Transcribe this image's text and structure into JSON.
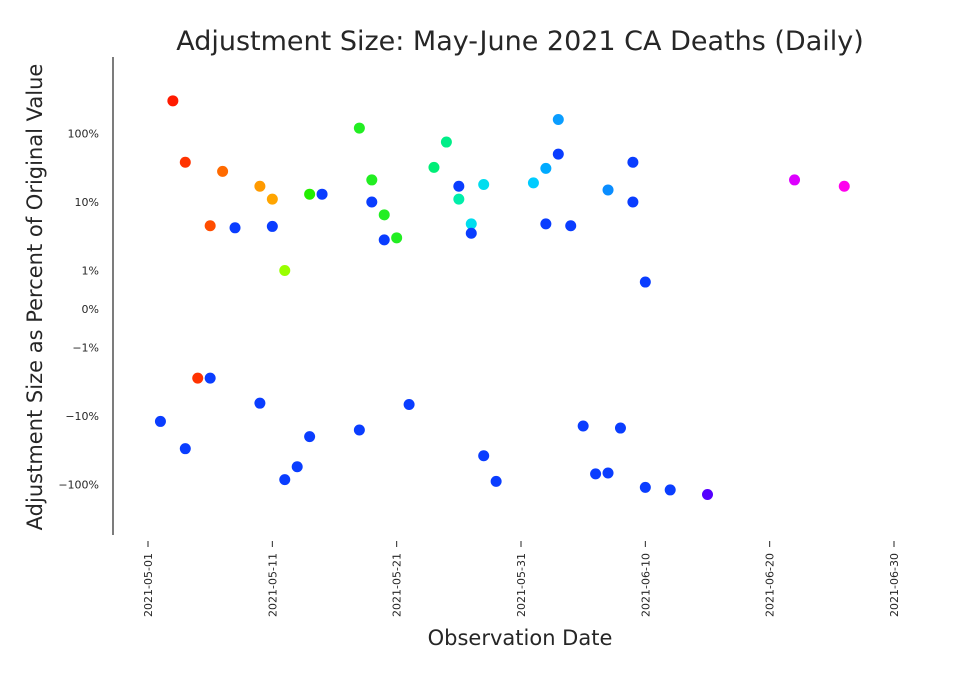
{
  "chart_data": {
    "type": "scatter",
    "title": "Adjustment Size: May-June 2021 CA Deaths (Daily)",
    "xlabel": "Observation Date",
    "ylabel": "Adjustment Size as Percent of Original Value",
    "x_ticks": [
      "2021-05-01",
      "2021-05-11",
      "2021-05-21",
      "2021-05-31",
      "2021-06-10",
      "2021-06-20",
      "2021-06-30"
    ],
    "y_ticks": [
      {
        "label": "100%",
        "value": 100
      },
      {
        "label": "10%",
        "value": 10
      },
      {
        "label": "1%",
        "value": 1
      },
      {
        "label": "0%",
        "value": 0
      },
      {
        "label": "−1%",
        "value": -1
      },
      {
        "label": "−10%",
        "value": -10
      },
      {
        "label": "−100%",
        "value": -100
      }
    ],
    "y_scale": "symlog",
    "xlim": [
      "2021-05-01",
      "2021-06-30"
    ],
    "grid": false,
    "baseline": {
      "y": 0,
      "color_scale": "rainbow"
    },
    "points": [
      {
        "x": "2021-05-03",
        "y": 300,
        "color": "#ff1a00"
      },
      {
        "x": "2021-05-04",
        "y": 38,
        "color": "#ff3300"
      },
      {
        "x": "2021-05-07",
        "y": 28,
        "color": "#ff6a00"
      },
      {
        "x": "2021-05-06",
        "y": 4.5,
        "color": "#ff4d00"
      },
      {
        "x": "2021-05-08",
        "y": 4.2,
        "color": "#0a3dff"
      },
      {
        "x": "2021-05-10",
        "y": 17,
        "color": "#ff9a00"
      },
      {
        "x": "2021-05-11",
        "y": 11,
        "color": "#ffa500"
      },
      {
        "x": "2021-05-11",
        "y": 4.4,
        "color": "#0a3dff"
      },
      {
        "x": "2021-05-12",
        "y": 1,
        "color": "#99ff00"
      },
      {
        "x": "2021-05-14",
        "y": 13,
        "color": "#22ee00"
      },
      {
        "x": "2021-05-15",
        "y": 13,
        "color": "#0a3dff"
      },
      {
        "x": "2021-05-18",
        "y": 120,
        "color": "#22ee22"
      },
      {
        "x": "2021-05-19",
        "y": 21,
        "color": "#22ee22"
      },
      {
        "x": "2021-05-19",
        "y": 10,
        "color": "#0a3dff"
      },
      {
        "x": "2021-05-20",
        "y": 6.5,
        "color": "#22ee22"
      },
      {
        "x": "2021-05-20",
        "y": 2.8,
        "color": "#0a3dff"
      },
      {
        "x": "2021-05-21",
        "y": 3,
        "color": "#22ee22"
      },
      {
        "x": "2021-05-24",
        "y": 32,
        "color": "#00ee77"
      },
      {
        "x": "2021-05-25",
        "y": 75,
        "color": "#00ee88"
      },
      {
        "x": "2021-05-26",
        "y": 17,
        "color": "#0a3dff"
      },
      {
        "x": "2021-05-26",
        "y": 11,
        "color": "#00eeaa"
      },
      {
        "x": "2021-05-27",
        "y": 4.8,
        "color": "#00ddee"
      },
      {
        "x": "2021-05-27",
        "y": 3.5,
        "color": "#0a3dff"
      },
      {
        "x": "2021-05-28",
        "y": 18,
        "color": "#00ddee"
      },
      {
        "x": "2021-06-01",
        "y": 19,
        "color": "#00ccff"
      },
      {
        "x": "2021-06-02",
        "y": 31,
        "color": "#00aaff"
      },
      {
        "x": "2021-06-02",
        "y": 4.8,
        "color": "#0a3dff"
      },
      {
        "x": "2021-06-03",
        "y": 160,
        "color": "#0a9dff"
      },
      {
        "x": "2021-06-03",
        "y": 50,
        "color": "#0a3dff"
      },
      {
        "x": "2021-06-04",
        "y": 4.5,
        "color": "#0a3dff"
      },
      {
        "x": "2021-06-07",
        "y": 15,
        "color": "#0a8dff"
      },
      {
        "x": "2021-06-09",
        "y": 38,
        "color": "#0a3dff"
      },
      {
        "x": "2021-06-09",
        "y": 10,
        "color": "#0a3dff"
      },
      {
        "x": "2021-06-10",
        "y": 0.7,
        "color": "#0a3dff"
      },
      {
        "x": "2021-06-22",
        "y": 21,
        "color": "#dd00ff"
      },
      {
        "x": "2021-06-26",
        "y": 17,
        "color": "#ff00ee"
      },
      {
        "x": "2021-05-02",
        "y": -12,
        "color": "#0a3dff"
      },
      {
        "x": "2021-05-04",
        "y": -30,
        "color": "#0a3dff"
      },
      {
        "x": "2021-05-05",
        "y": -2.8,
        "color": "#ff3300"
      },
      {
        "x": "2021-05-06",
        "y": -2.8,
        "color": "#0a3dff"
      },
      {
        "x": "2021-05-10",
        "y": -6.5,
        "color": "#0a3dff"
      },
      {
        "x": "2021-05-12",
        "y": -85,
        "color": "#0a3dff"
      },
      {
        "x": "2021-05-13",
        "y": -55,
        "color": "#0a3dff"
      },
      {
        "x": "2021-05-14",
        "y": -20,
        "color": "#0a3dff"
      },
      {
        "x": "2021-05-18",
        "y": -16,
        "color": "#0a3dff"
      },
      {
        "x": "2021-05-22",
        "y": -6.8,
        "color": "#0a3dff"
      },
      {
        "x": "2021-05-28",
        "y": -38,
        "color": "#0a3dff"
      },
      {
        "x": "2021-05-29",
        "y": -90,
        "color": "#0a3dff"
      },
      {
        "x": "2021-06-05",
        "y": -14,
        "color": "#0a3dff"
      },
      {
        "x": "2021-06-06",
        "y": -70,
        "color": "#0a3dff"
      },
      {
        "x": "2021-06-07",
        "y": -68,
        "color": "#0a3dff"
      },
      {
        "x": "2021-06-08",
        "y": -15,
        "color": "#0a3dff"
      },
      {
        "x": "2021-06-10",
        "y": -110,
        "color": "#0a3dff"
      },
      {
        "x": "2021-06-12",
        "y": -120,
        "color": "#0a3dff"
      },
      {
        "x": "2021-06-15",
        "y": -140,
        "color": "#5500ff"
      }
    ]
  }
}
